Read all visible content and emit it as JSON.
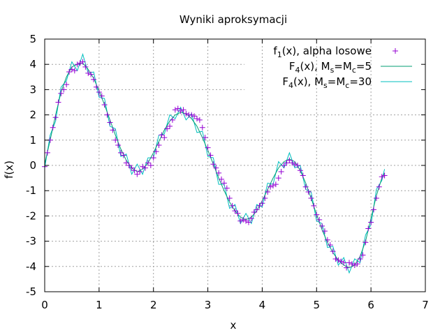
{
  "chart_data": {
    "type": "line",
    "title": "Wyniki aproksymacji",
    "xlabel": "x",
    "ylabel": "f(x)",
    "xlim": [
      0,
      7
    ],
    "ylim": [
      -5,
      5
    ],
    "xticks": [
      "0",
      "1",
      "2",
      "3",
      "4",
      "5",
      "6",
      "7"
    ],
    "yticks": [
      "-5",
      "-4",
      "-3",
      "-2",
      "-1",
      "0",
      "1",
      "2",
      "3",
      "4",
      "5"
    ],
    "grid": true,
    "legend_position": "top-right",
    "colors": {
      "points": "#9400d3",
      "approx5": "#009e73",
      "approx30": "#00bfbf"
    },
    "legend": [
      {
        "base": "f",
        "sub": "1",
        "rest": "(x), alpha losowe",
        "marker": "plus",
        "color": "#9400d3"
      },
      {
        "base": "F",
        "sub": "4",
        "rest": "(x), M",
        "sub2": "s",
        "rest2": "=M",
        "sub3": "c",
        "rest3": "=5",
        "marker": "line",
        "color": "#009e73"
      },
      {
        "base": "F",
        "sub": "4",
        "rest": "(x), M",
        "sub2": "s",
        "rest2": "=M",
        "sub3": "c",
        "rest3": "=30",
        "marker": "line",
        "color": "#00bfbf"
      }
    ],
    "series": [
      {
        "name": "f1(x), alpha losowe",
        "style": "points",
        "x": [
          0.0,
          0.05,
          0.1,
          0.15,
          0.2,
          0.25,
          0.3,
          0.35,
          0.4,
          0.45,
          0.5,
          0.55,
          0.6,
          0.65,
          0.7,
          0.75,
          0.8,
          0.85,
          0.9,
          0.95,
          1.0,
          1.05,
          1.1,
          1.15,
          1.2,
          1.25,
          1.3,
          1.35,
          1.4,
          1.45,
          1.5,
          1.55,
          1.6,
          1.65,
          1.7,
          1.75,
          1.8,
          1.85,
          1.9,
          1.95,
          2.0,
          2.05,
          2.1,
          2.15,
          2.2,
          2.25,
          2.3,
          2.35,
          2.4,
          2.45,
          2.5,
          2.55,
          2.6,
          2.65,
          2.7,
          2.75,
          2.8,
          2.85,
          2.9,
          2.95,
          3.0,
          3.05,
          3.1,
          3.15,
          3.2,
          3.25,
          3.3,
          3.35,
          3.4,
          3.45,
          3.5,
          3.55,
          3.6,
          3.65,
          3.7,
          3.75,
          3.8,
          3.85,
          3.9,
          3.95,
          4.0,
          4.05,
          4.1,
          4.15,
          4.2,
          4.25,
          4.3,
          4.35,
          4.4,
          4.45,
          4.5,
          4.55,
          4.6,
          4.65,
          4.7,
          4.75,
          4.8,
          4.85,
          4.9,
          4.95,
          5.0,
          5.05,
          5.1,
          5.15,
          5.2,
          5.25,
          5.3,
          5.35,
          5.4,
          5.45,
          5.5,
          5.55,
          5.6,
          5.65,
          5.7,
          5.75,
          5.8,
          5.85,
          5.9,
          5.95,
          6.0,
          6.05,
          6.1,
          6.15,
          6.2,
          6.25
        ],
        "y": [
          -0.05,
          0.5,
          1.0,
          1.5,
          1.9,
          2.5,
          2.85,
          3.0,
          3.2,
          3.7,
          3.8,
          3.75,
          4.0,
          4.05,
          4.1,
          3.9,
          3.65,
          3.6,
          3.4,
          3.1,
          2.9,
          2.75,
          2.4,
          2.0,
          1.7,
          1.4,
          1.0,
          0.8,
          0.5,
          0.4,
          0.1,
          0.0,
          -0.1,
          -0.2,
          -0.35,
          -0.25,
          -0.05,
          -0.1,
          0.1,
          0.0,
          0.3,
          0.55,
          0.8,
          1.2,
          1.1,
          1.45,
          1.55,
          1.8,
          2.2,
          2.25,
          2.15,
          2.2,
          2.05,
          2.0,
          2.0,
          1.95,
          1.85,
          1.8,
          1.5,
          1.1,
          0.7,
          0.4,
          0.05,
          -0.1,
          -0.3,
          -0.55,
          -0.7,
          -0.9,
          -1.3,
          -1.6,
          -1.8,
          -1.9,
          -2.2,
          -2.15,
          -2.2,
          -2.25,
          -2.1,
          -1.85,
          -1.75,
          -1.6,
          -1.5,
          -1.3,
          -1.05,
          -0.85,
          -0.8,
          -0.75,
          -0.5,
          -0.25,
          0.0,
          0.1,
          0.2,
          0.1,
          0.05,
          0.0,
          -0.2,
          -0.4,
          -0.85,
          -1.05,
          -1.3,
          -1.6,
          -1.95,
          -2.15,
          -2.4,
          -2.6,
          -2.95,
          -3.15,
          -3.4,
          -3.7,
          -3.75,
          -3.8,
          -3.85,
          -4.05,
          -3.85,
          -3.9,
          -3.95,
          -3.9,
          -3.7,
          -3.55,
          -3.05,
          -2.5,
          -2.25,
          -1.75,
          -1.3,
          -0.85,
          -0.45,
          -0.4
        ]
      },
      {
        "name": "F4(x), Ms=Mc=5",
        "style": "line",
        "x": [
          0.0,
          0.1,
          0.2,
          0.3,
          0.4,
          0.5,
          0.6,
          0.7,
          0.8,
          0.9,
          1.0,
          1.1,
          1.2,
          1.3,
          1.4,
          1.5,
          1.6,
          1.7,
          1.8,
          1.9,
          2.0,
          2.1,
          2.2,
          2.3,
          2.4,
          2.5,
          2.6,
          2.7,
          2.8,
          2.9,
          3.0,
          3.1,
          3.2,
          3.3,
          3.4,
          3.5,
          3.6,
          3.7,
          3.8,
          3.9,
          4.0,
          4.1,
          4.2,
          4.3,
          4.4,
          4.5,
          4.6,
          4.7,
          4.8,
          4.9,
          5.0,
          5.1,
          5.2,
          5.3,
          5.4,
          5.5,
          5.6,
          5.7,
          5.8,
          5.9,
          6.0,
          6.1,
          6.2,
          6.25
        ],
        "y": [
          0.05,
          1.0,
          2.0,
          2.9,
          3.5,
          3.9,
          4.0,
          4.05,
          3.8,
          3.45,
          2.95,
          2.4,
          1.8,
          1.2,
          0.65,
          0.2,
          -0.1,
          -0.25,
          -0.15,
          0.1,
          0.5,
          0.95,
          1.4,
          1.75,
          2.0,
          2.1,
          2.05,
          1.85,
          1.55,
          1.1,
          0.6,
          0.05,
          -0.5,
          -1.0,
          -1.45,
          -1.8,
          -2.05,
          -2.15,
          -2.05,
          -1.8,
          -1.4,
          -0.95,
          -0.5,
          -0.1,
          0.15,
          0.25,
          0.15,
          -0.2,
          -0.7,
          -1.3,
          -1.95,
          -2.55,
          -3.05,
          -3.45,
          -3.75,
          -3.95,
          -4.05,
          -3.95,
          -3.6,
          -3.0,
          -2.1,
          -1.2,
          -0.5,
          -0.3
        ]
      },
      {
        "name": "F4(x), Ms=Mc=30",
        "style": "line",
        "x": [
          0.0,
          0.1,
          0.2,
          0.3,
          0.4,
          0.5,
          0.6,
          0.7,
          0.8,
          0.9,
          1.0,
          1.1,
          1.2,
          1.3,
          1.4,
          1.5,
          1.6,
          1.7,
          1.8,
          1.9,
          2.0,
          2.1,
          2.2,
          2.3,
          2.4,
          2.5,
          2.6,
          2.7,
          2.8,
          2.9,
          3.0,
          3.1,
          3.2,
          3.3,
          3.4,
          3.5,
          3.6,
          3.7,
          3.8,
          3.9,
          4.0,
          4.1,
          4.2,
          4.3,
          4.4,
          4.5,
          4.6,
          4.7,
          4.8,
          4.9,
          5.0,
          5.1,
          5.2,
          5.3,
          5.4,
          5.5,
          5.6,
          5.7,
          5.8,
          5.9,
          6.0,
          6.1,
          6.2,
          6.25
        ],
        "y": [
          -0.1,
          1.2,
          1.75,
          3.1,
          3.35,
          4.1,
          3.75,
          4.4,
          3.65,
          3.7,
          2.7,
          2.65,
          1.55,
          1.45,
          0.35,
          0.45,
          -0.35,
          0.05,
          -0.35,
          0.3,
          0.3,
          1.2,
          1.25,
          2.0,
          1.85,
          2.3,
          1.8,
          2.05,
          1.3,
          1.35,
          0.35,
          0.3,
          -0.75,
          -0.75,
          -1.7,
          -1.55,
          -2.3,
          -1.9,
          -2.3,
          -1.55,
          -1.65,
          -0.7,
          -0.75,
          0.15,
          -0.1,
          0.5,
          -0.1,
          0.0,
          -0.95,
          -1.05,
          -2.2,
          -2.3,
          -3.25,
          -3.2,
          -3.95,
          -3.65,
          -4.25,
          -3.7,
          -3.85,
          -2.75,
          -2.35,
          -0.95,
          -0.6,
          -0.15
        ]
      }
    ]
  }
}
